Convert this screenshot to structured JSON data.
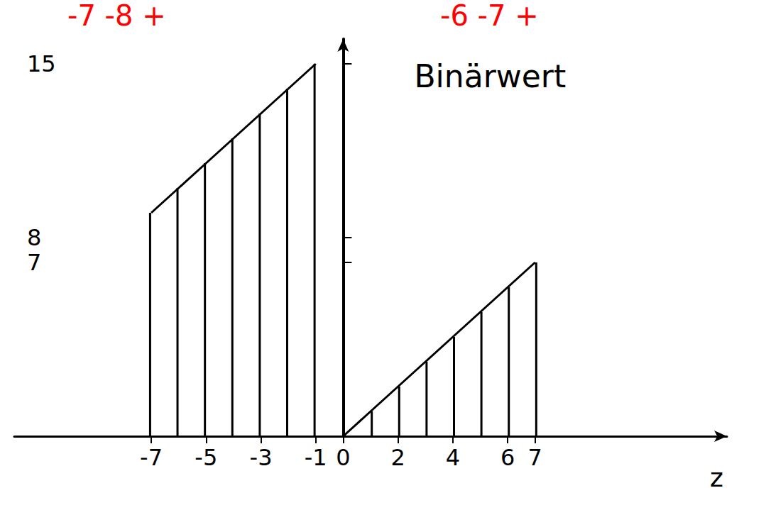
{
  "chart_data": {
    "type": "stem",
    "y_label": "Binärwert",
    "x_label": "z",
    "series": [
      {
        "x": [
          -7,
          -6,
          -5,
          -4,
          -3,
          -2,
          -1
        ],
        "values": [
          9,
          10,
          11,
          12,
          13,
          14,
          15
        ]
      },
      {
        "x": [
          0,
          1,
          2,
          3,
          4,
          5,
          6,
          7
        ],
        "values": [
          0,
          1,
          2,
          3,
          4,
          5,
          6,
          7
        ]
      }
    ],
    "color": "#000000",
    "xlim": [
      -12,
      14
    ],
    "xticks": [
      -7,
      -5,
      -3,
      -1,
      0,
      2,
      4,
      6,
      7
    ],
    "ylim": [
      0,
      16
    ],
    "yticks": [
      7,
      8,
      15
    ],
    "grid": false,
    "annotations": [
      {
        "text": "-7 -8 +",
        "color": "#ff0000"
      },
      {
        "text": "-6 -7 +",
        "color": "#ff0000"
      }
    ]
  }
}
